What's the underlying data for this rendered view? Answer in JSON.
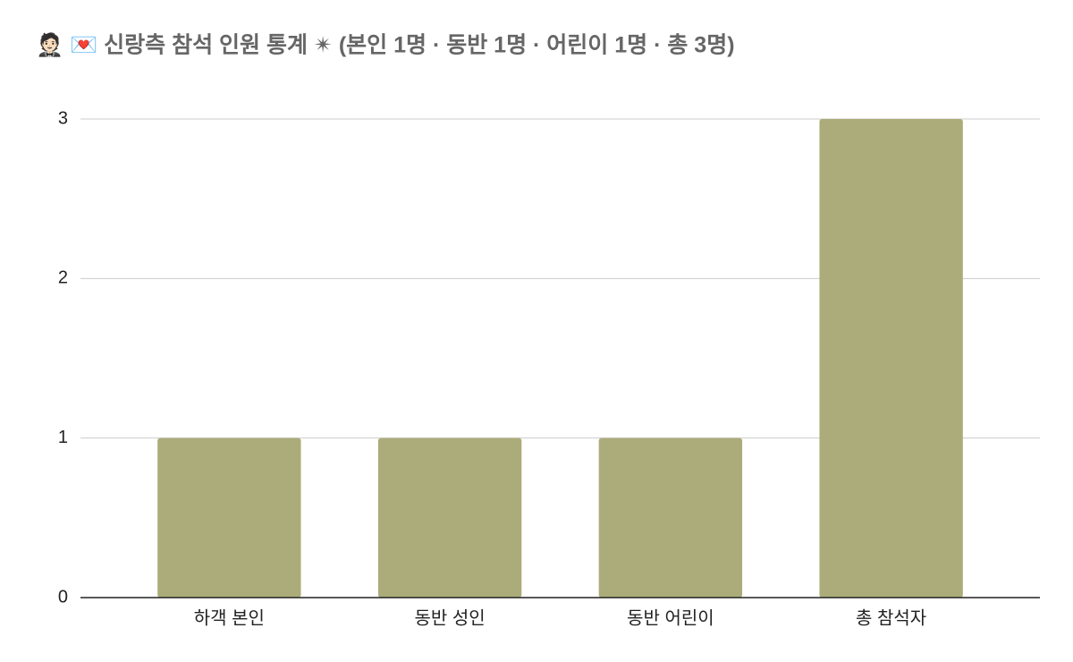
{
  "chart_data": {
    "type": "bar",
    "title": "🤵🏻 💌  신랑측 참석 인원 통계  ✴  (본인 1명 · 동반 1명 · 어린이 1명 · 총 3명)",
    "categories": [
      "하객 본인",
      "동반 성인",
      "동반 어린이",
      "총 참석자"
    ],
    "values": [
      1,
      1,
      1,
      3
    ],
    "color": "#acac7b",
    "ylim": [
      0,
      3
    ],
    "yticks": [
      0,
      1,
      2,
      3
    ],
    "grid": true
  }
}
